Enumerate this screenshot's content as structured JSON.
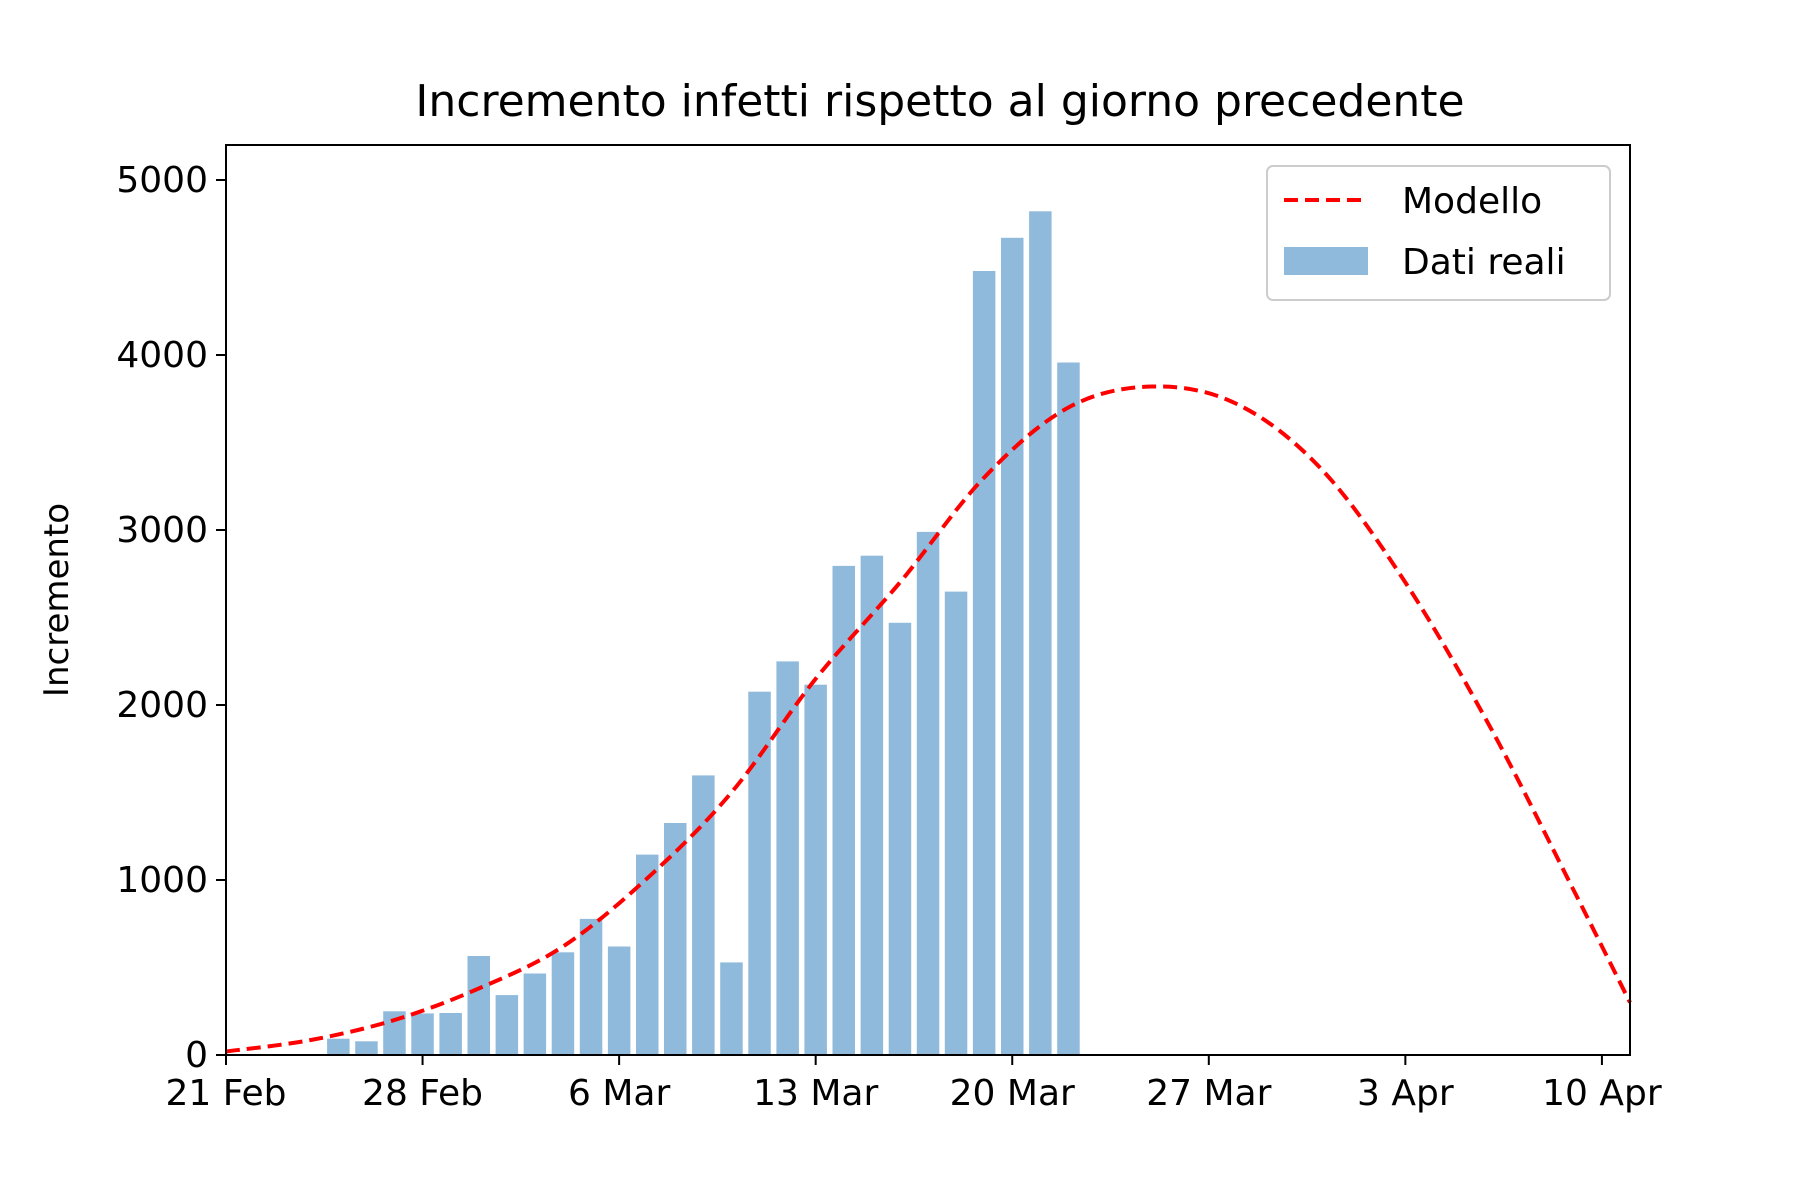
{
  "chart_data": {
    "type": "bar",
    "title": "Incremento infetti rispetto al giorno precedente",
    "xlabel": "",
    "ylabel": "Incremento",
    "ylim": [
      0,
      5200
    ],
    "y_ticks": [
      "0",
      "1000",
      "2000",
      "3000",
      "4000",
      "5000"
    ],
    "x_ticks": [
      {
        "date": "2020-02-21",
        "label": "21 Feb"
      },
      {
        "date": "2020-02-28",
        "label": "28 Feb"
      },
      {
        "date": "2020-03-06",
        "label": "6 Mar"
      },
      {
        "date": "2020-03-13",
        "label": "13 Mar"
      },
      {
        "date": "2020-03-20",
        "label": "20 Mar"
      },
      {
        "date": "2020-03-27",
        "label": "27 Mar"
      },
      {
        "date": "2020-04-03",
        "label": "3 Apr"
      },
      {
        "date": "2020-04-10",
        "label": "10 Apr"
      }
    ],
    "xlim": [
      "2020-02-21",
      "2020-04-11"
    ],
    "grid": false,
    "legend_position": "top-right",
    "series": [
      {
        "name": "Dati reali",
        "type": "bar",
        "color": "#8fbadc",
        "dates": [
          "2020-02-25",
          "2020-02-26",
          "2020-02-27",
          "2020-02-28",
          "2020-02-29",
          "2020-03-01",
          "2020-03-02",
          "2020-03-03",
          "2020-03-04",
          "2020-03-05",
          "2020-03-06",
          "2020-03-07",
          "2020-03-08",
          "2020-03-09",
          "2020-03-10",
          "2020-03-11",
          "2020-03-12",
          "2020-03-13",
          "2020-03-14",
          "2020-03-15",
          "2020-03-16",
          "2020-03-17",
          "2020-03-18",
          "2020-03-19",
          "2020-03-20",
          "2020-03-21",
          "2020-03-22"
        ],
        "values": [
          93,
          78,
          250,
          238,
          240,
          566,
          342,
          466,
          587,
          778,
          620,
          1145,
          1326,
          1598,
          529,
          2076,
          2249,
          2116,
          2795,
          2853,
          2470,
          2989,
          2648,
          4480,
          4670,
          4821,
          3957
        ]
      },
      {
        "name": "Modello",
        "type": "line",
        "color": "#ff0000",
        "style": "dashed",
        "dates": [
          "2020-02-21",
          "2020-02-24",
          "2020-02-27",
          "2020-03-01",
          "2020-03-04",
          "2020-03-07",
          "2020-03-10",
          "2020-03-13",
          "2020-03-16",
          "2020-03-19",
          "2020-03-22",
          "2020-03-25",
          "2020-03-28",
          "2020-03-31",
          "2020-04-03",
          "2020-04-06",
          "2020-04-09",
          "2020-04-11"
        ],
        "values": [
          20,
          85,
          200,
          380,
          620,
          1010,
          1500,
          2150,
          2700,
          3300,
          3700,
          3820,
          3720,
          3350,
          2700,
          1880,
          940,
          300
        ]
      }
    ]
  }
}
